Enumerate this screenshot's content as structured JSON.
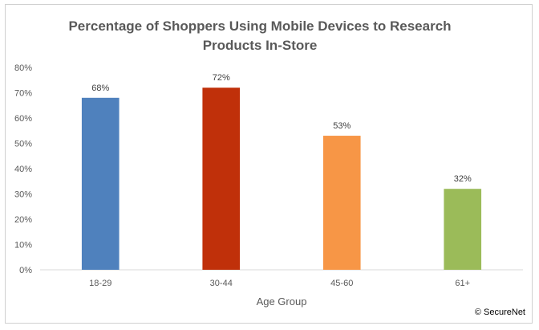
{
  "chart_data": {
    "type": "bar",
    "title_lines": [
      "Percentage of Shoppers Using Mobile Devices to Research",
      "Products In-Store"
    ],
    "categories": [
      "18-29",
      "30-44",
      "45-60",
      "61+"
    ],
    "values": [
      68,
      72,
      53,
      32
    ],
    "value_labels": [
      "68%",
      "72%",
      "53%",
      "32%"
    ],
    "bar_colors": [
      "#4f81bd",
      "#c0300a",
      "#f79646",
      "#9bbb59"
    ],
    "xlabel": "Age Group",
    "ylabel": "",
    "ylim": [
      0,
      80
    ],
    "yticks": [
      0,
      10,
      20,
      30,
      40,
      50,
      60,
      70,
      80
    ],
    "ytick_labels": [
      "0%",
      "10%",
      "20%",
      "30%",
      "40%",
      "50%",
      "60%",
      "70%",
      "80%"
    ],
    "grid": false,
    "legend": "none"
  },
  "credit": "© SecureNet"
}
